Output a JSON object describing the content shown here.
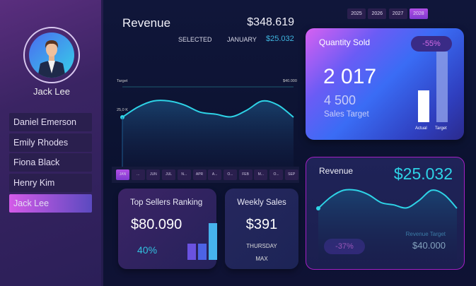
{
  "user": {
    "name": "Jack Lee"
  },
  "sidebar": {
    "people": [
      "Daniel Emerson",
      "Emily Rhodes",
      "Fiona Black",
      "Henry Kim",
      "Jack Lee"
    ],
    "selected": "Jack Lee"
  },
  "revenue_panel": {
    "title": "Revenue",
    "total": "$348.619",
    "selected_label": "SELECTED",
    "month": "JANUARY",
    "month_value": "$25.032",
    "target_label": "Target",
    "target_value": "$40.000",
    "start_label": "25,0 K",
    "trend_k": [
      25,
      30,
      33,
      33,
      31,
      27.5,
      26.5,
      25.2,
      28.5,
      33,
      31,
      25
    ],
    "target_k": 40
  },
  "months": [
    "JAN",
    "...",
    "JUN",
    "JUL",
    "N...",
    "APR",
    "A...",
    "O...",
    "FEB",
    "M...",
    "O...",
    "SEP"
  ],
  "selected_month": "JAN",
  "years": [
    "2025",
    "2026",
    "2027",
    "2028"
  ],
  "selected_year": "2028",
  "quantity": {
    "title": "Quantity Sold",
    "badge": "-55%",
    "actual": "2 017",
    "target": "4 500",
    "target_label": "Sales Target",
    "actual_bar_label": "Actual",
    "target_bar_label": "Target",
    "actual_value": 2017,
    "target_value": 4500
  },
  "top_sellers": {
    "title": "Top Sellers Ranking",
    "value": "$80.090",
    "percent": "40%",
    "bars": [
      0.45,
      0.45,
      1.0
    ]
  },
  "weekly": {
    "title": "Weekly Sales",
    "value": "$391",
    "day": "THURSDAY",
    "label": "MAX"
  },
  "revenue_card": {
    "title": "Revenue",
    "value": "$25.032",
    "badge": "-37%",
    "target_label": "Revenue Target",
    "target_value": "$40.000"
  },
  "colors": {
    "accent": "#2ed3e6",
    "magenta": "#c44ae0",
    "bg": "#0c1232"
  }
}
